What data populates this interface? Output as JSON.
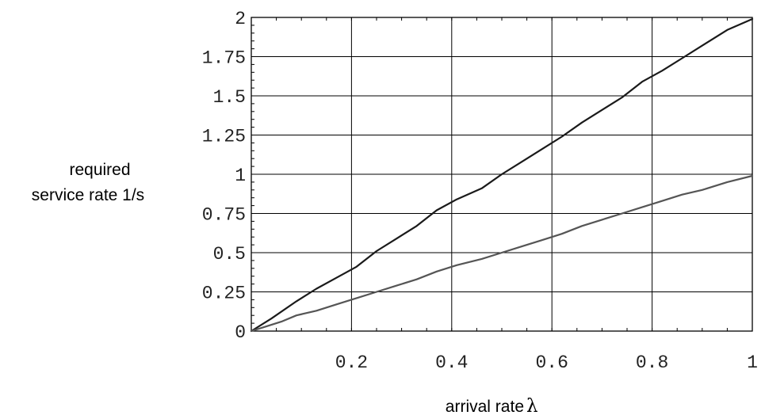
{
  "chart_data": {
    "type": "line",
    "xlabel": "arrival rate",
    "xlabel_symbol": "λ",
    "ylabel_lines": [
      "required",
      "service rate 1/s"
    ],
    "xlim": [
      0,
      1
    ],
    "ylim": [
      0,
      2
    ],
    "x_ticks": [
      0.2,
      0.4,
      0.6,
      0.8,
      1
    ],
    "x_tick_labels": [
      "0.2",
      "0.4",
      "0.6",
      "0.8",
      "1"
    ],
    "y_ticks": [
      0,
      0.25,
      0.5,
      0.75,
      1,
      1.25,
      1.5,
      1.75,
      2
    ],
    "y_tick_labels": [
      "0",
      "0.25",
      "0.5",
      "0.75",
      "1",
      "1.25",
      "1.5",
      "1.75",
      "2"
    ],
    "grid": true,
    "series": [
      {
        "color": "#1a1a1a",
        "x": [
          0,
          0.04,
          0.09,
          0.13,
          0.17,
          0.21,
          0.25,
          0.29,
          0.33,
          0.37,
          0.41,
          0.46,
          0.5,
          0.54,
          0.58,
          0.62,
          0.66,
          0.7,
          0.74,
          0.78,
          0.82,
          0.86,
          0.9,
          0.95,
          1
        ],
        "y": [
          0,
          0.08,
          0.19,
          0.27,
          0.34,
          0.41,
          0.51,
          0.59,
          0.67,
          0.77,
          0.84,
          0.91,
          1.0,
          1.08,
          1.16,
          1.24,
          1.33,
          1.41,
          1.49,
          1.59,
          1.66,
          1.74,
          1.82,
          1.92,
          1.99
        ]
      },
      {
        "color": "#555555",
        "x": [
          0,
          0.03,
          0.06,
          0.09,
          0.13,
          0.17,
          0.21,
          0.25,
          0.29,
          0.33,
          0.37,
          0.41,
          0.46,
          0.5,
          0.54,
          0.58,
          0.62,
          0.66,
          0.7,
          0.74,
          0.78,
          0.82,
          0.86,
          0.9,
          0.95,
          1
        ],
        "y": [
          0,
          0.03,
          0.06,
          0.1,
          0.13,
          0.17,
          0.21,
          0.25,
          0.29,
          0.33,
          0.38,
          0.42,
          0.46,
          0.5,
          0.54,
          0.58,
          0.62,
          0.67,
          0.71,
          0.75,
          0.79,
          0.83,
          0.87,
          0.9,
          0.95,
          0.99
        ]
      }
    ]
  }
}
